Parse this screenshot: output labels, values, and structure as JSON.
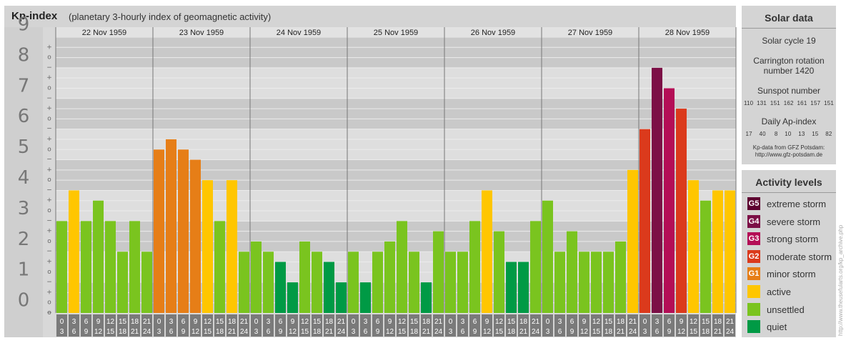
{
  "title": {
    "main": "Kp-index",
    "subtitle": "(planetary 3-hourly index of geomagnetic activity)"
  },
  "colors": {
    "quiet": "#009a45",
    "unsettled": "#7ac41f",
    "active": "#ffc600",
    "G1": "#e67e17",
    "G2": "#db3a1c",
    "G3": "#b40e56",
    "G4": "#7c0f46",
    "G5": "#5e0030"
  },
  "chart_data": {
    "type": "bar",
    "ylim": [
      0,
      9
    ],
    "y_ticks": [
      "0",
      "1",
      "2",
      "3",
      "4",
      "5",
      "6",
      "7",
      "8",
      "9"
    ],
    "minor_marks": [
      "+",
      "o",
      "−"
    ],
    "days": [
      "22 Nov 1959",
      "23 Nov 1959",
      "24 Nov 1959",
      "25 Nov 1959",
      "26 Nov 1959",
      "27 Nov 1959",
      "28 Nov 1959"
    ],
    "interval_labels": [
      [
        "0",
        "3"
      ],
      [
        "3",
        "6"
      ],
      [
        "6",
        "9"
      ],
      [
        "9",
        "12"
      ],
      [
        "12",
        "15"
      ],
      [
        "15",
        "18"
      ],
      [
        "18",
        "21"
      ],
      [
        "21",
        "24"
      ]
    ],
    "values": [
      [
        3.0,
        4.0,
        3.0,
        3.667,
        3.0,
        2.0,
        3.0,
        2.0
      ],
      [
        5.333,
        5.667,
        5.333,
        5.0,
        4.333,
        3.0,
        4.333,
        2.0
      ],
      [
        2.333,
        2.0,
        1.667,
        1.0,
        2.333,
        2.0,
        1.667,
        1.0
      ],
      [
        2.0,
        1.0,
        2.0,
        2.333,
        3.0,
        2.0,
        1.0,
        2.667
      ],
      [
        2.0,
        2.0,
        3.0,
        4.0,
        2.667,
        1.667,
        1.667,
        3.0
      ],
      [
        3.667,
        2.0,
        2.667,
        2.0,
        2.0,
        2.0,
        2.333,
        4.667
      ],
      [
        6.0,
        8.0,
        7.333,
        6.667,
        4.333,
        3.667,
        4.0,
        4.0
      ]
    ]
  },
  "solar": {
    "heading": "Solar data",
    "cycle": "Solar cycle 19",
    "carrington_1": "Carrington rotation",
    "carrington_2": "number 1420",
    "sunspot_label": "Sunspot number",
    "sunspot_values": "110  131  151  162  161  157  151",
    "ap_label": "Daily Ap-index",
    "ap_values": "17    40     8    10    13    15    82",
    "source_1": "Kp-data from  GFZ Potsdam:",
    "source_2": "http://www.gfz-potsdam.de"
  },
  "levels": {
    "heading": "Activity levels",
    "items": [
      {
        "code": "G5",
        "label": "extreme storm",
        "color": "#5e0030"
      },
      {
        "code": "G4",
        "label": "severe storm",
        "color": "#7c0f46"
      },
      {
        "code": "G3",
        "label": "strong storm",
        "color": "#b40e56"
      },
      {
        "code": "G2",
        "label": "moderate storm",
        "color": "#db3a1c"
      },
      {
        "code": "G1",
        "label": "minor storm",
        "color": "#e67e17"
      },
      {
        "code": "",
        "label": "active",
        "color": "#ffc600"
      },
      {
        "code": "",
        "label": "unsettled",
        "color": "#7ac41f"
      },
      {
        "code": "",
        "label": "quiet",
        "color": "#009a45"
      }
    ]
  },
  "credit": "http://www.theusefularts.org/kp_archive.php"
}
